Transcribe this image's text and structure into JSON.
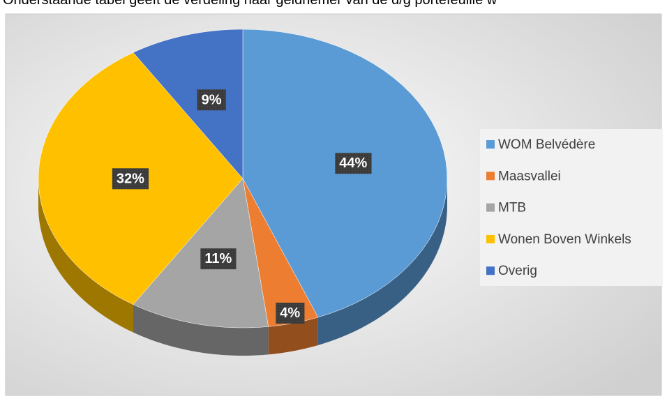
{
  "header": {
    "text": "Onderstaande tabel geeft de verdeling naar geldnemer van de d/g portefeuille w"
  },
  "chart_data": {
    "type": "pie",
    "categories": [
      "WOM Belvédère",
      "Maasvallei",
      "MTB",
      "Wonen Boven Winkels",
      "Overig"
    ],
    "values": [
      44,
      4,
      11,
      32,
      9
    ],
    "value_labels": [
      "44%",
      "4%",
      "11%",
      "32%",
      "9%"
    ],
    "colors": [
      "#5b9bd5",
      "#ed7d31",
      "#a5a5a5",
      "#ffc000",
      "#4472c4"
    ],
    "legend": "right"
  }
}
